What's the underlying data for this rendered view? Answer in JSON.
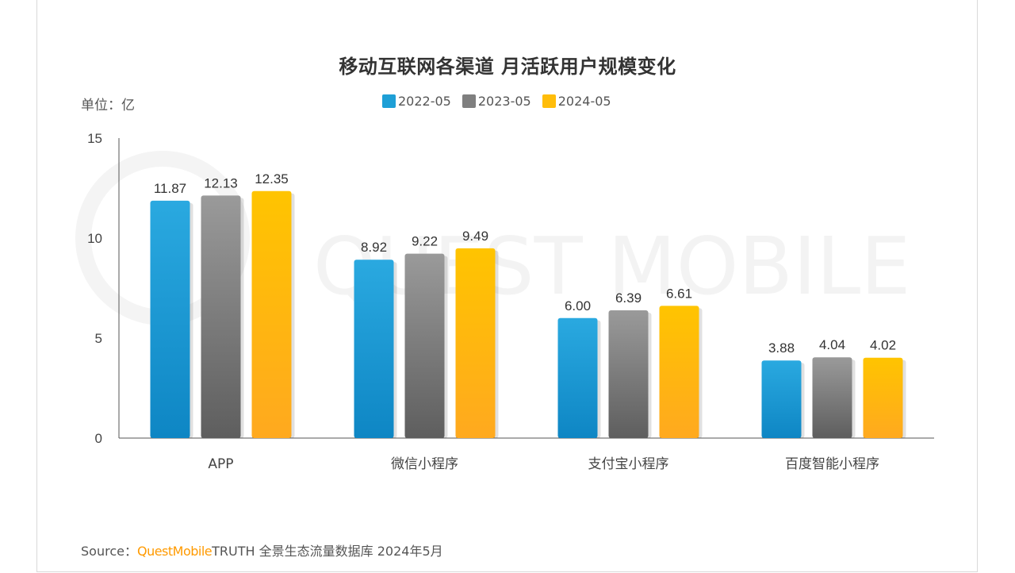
{
  "title": "移动互联网各渠道 月活跃用户规模变化",
  "unit_label": "单位：亿",
  "source": {
    "prefix": "Source：",
    "brand": "QuestMobile",
    "suffix": "TRUTH 全景生态流量数据库 2024年5月"
  },
  "watermark": "QUEST MOBILE",
  "colors": {
    "series_2022": "#1e9fd6",
    "series_2023": "#7f7f7f",
    "series_2024": "#ffbd0a",
    "brand": "#ff9a00"
  },
  "chart_data": {
    "type": "bar",
    "title": "移动互联网各渠道 月活跃用户规模变化",
    "categories": [
      "APP",
      "微信小程序",
      "支付宝小程序",
      "百度智能小程序"
    ],
    "series": [
      {
        "name": "2022-05",
        "values": [
          11.87,
          8.92,
          6.0,
          3.88
        ],
        "labels": [
          "11.87",
          "8.92",
          "6.00",
          "3.88"
        ]
      },
      {
        "name": "2023-05",
        "values": [
          12.13,
          9.22,
          6.39,
          4.04
        ],
        "labels": [
          "12.13",
          "9.22",
          "6.39",
          "4.04"
        ]
      },
      {
        "name": "2024-05",
        "values": [
          12.35,
          9.49,
          6.61,
          4.02
        ],
        "labels": [
          "12.35",
          "9.49",
          "6.61",
          "4.02"
        ]
      }
    ],
    "ylim": [
      0,
      15
    ],
    "yticks": [
      0,
      5,
      10,
      15
    ],
    "ytick_labels": [
      "0",
      "5",
      "10",
      "15"
    ],
    "xlabel": "",
    "ylabel": "",
    "legend_position": "top-center",
    "grid": false
  }
}
